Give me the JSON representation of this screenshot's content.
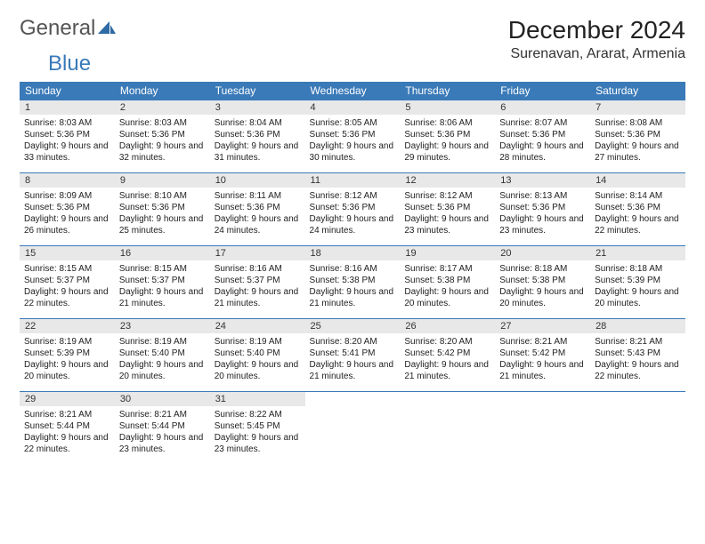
{
  "brand": {
    "part1": "General",
    "part2": "Blue"
  },
  "title": "December 2024",
  "location": "Surenavan, Ararat, Armenia",
  "colors": {
    "header_bg": "#3a7ab8",
    "header_fg": "#ffffff",
    "daynum_bg": "#e8e8e8",
    "border": "#3a7ab8",
    "logo_gray": "#555555",
    "logo_blue": "#3a7ab8"
  },
  "weekdays": [
    "Sunday",
    "Monday",
    "Tuesday",
    "Wednesday",
    "Thursday",
    "Friday",
    "Saturday"
  ],
  "weeks": [
    [
      {
        "n": "1",
        "sr": "8:03 AM",
        "ss": "5:36 PM",
        "dl": "9 hours and 33 minutes."
      },
      {
        "n": "2",
        "sr": "8:03 AM",
        "ss": "5:36 PM",
        "dl": "9 hours and 32 minutes."
      },
      {
        "n": "3",
        "sr": "8:04 AM",
        "ss": "5:36 PM",
        "dl": "9 hours and 31 minutes."
      },
      {
        "n": "4",
        "sr": "8:05 AM",
        "ss": "5:36 PM",
        "dl": "9 hours and 30 minutes."
      },
      {
        "n": "5",
        "sr": "8:06 AM",
        "ss": "5:36 PM",
        "dl": "9 hours and 29 minutes."
      },
      {
        "n": "6",
        "sr": "8:07 AM",
        "ss": "5:36 PM",
        "dl": "9 hours and 28 minutes."
      },
      {
        "n": "7",
        "sr": "8:08 AM",
        "ss": "5:36 PM",
        "dl": "9 hours and 27 minutes."
      }
    ],
    [
      {
        "n": "8",
        "sr": "8:09 AM",
        "ss": "5:36 PM",
        "dl": "9 hours and 26 minutes."
      },
      {
        "n": "9",
        "sr": "8:10 AM",
        "ss": "5:36 PM",
        "dl": "9 hours and 25 minutes."
      },
      {
        "n": "10",
        "sr": "8:11 AM",
        "ss": "5:36 PM",
        "dl": "9 hours and 24 minutes."
      },
      {
        "n": "11",
        "sr": "8:12 AM",
        "ss": "5:36 PM",
        "dl": "9 hours and 24 minutes."
      },
      {
        "n": "12",
        "sr": "8:12 AM",
        "ss": "5:36 PM",
        "dl": "9 hours and 23 minutes."
      },
      {
        "n": "13",
        "sr": "8:13 AM",
        "ss": "5:36 PM",
        "dl": "9 hours and 23 minutes."
      },
      {
        "n": "14",
        "sr": "8:14 AM",
        "ss": "5:36 PM",
        "dl": "9 hours and 22 minutes."
      }
    ],
    [
      {
        "n": "15",
        "sr": "8:15 AM",
        "ss": "5:37 PM",
        "dl": "9 hours and 22 minutes."
      },
      {
        "n": "16",
        "sr": "8:15 AM",
        "ss": "5:37 PM",
        "dl": "9 hours and 21 minutes."
      },
      {
        "n": "17",
        "sr": "8:16 AM",
        "ss": "5:37 PM",
        "dl": "9 hours and 21 minutes."
      },
      {
        "n": "18",
        "sr": "8:16 AM",
        "ss": "5:38 PM",
        "dl": "9 hours and 21 minutes."
      },
      {
        "n": "19",
        "sr": "8:17 AM",
        "ss": "5:38 PM",
        "dl": "9 hours and 20 minutes."
      },
      {
        "n": "20",
        "sr": "8:18 AM",
        "ss": "5:38 PM",
        "dl": "9 hours and 20 minutes."
      },
      {
        "n": "21",
        "sr": "8:18 AM",
        "ss": "5:39 PM",
        "dl": "9 hours and 20 minutes."
      }
    ],
    [
      {
        "n": "22",
        "sr": "8:19 AM",
        "ss": "5:39 PM",
        "dl": "9 hours and 20 minutes."
      },
      {
        "n": "23",
        "sr": "8:19 AM",
        "ss": "5:40 PM",
        "dl": "9 hours and 20 minutes."
      },
      {
        "n": "24",
        "sr": "8:19 AM",
        "ss": "5:40 PM",
        "dl": "9 hours and 20 minutes."
      },
      {
        "n": "25",
        "sr": "8:20 AM",
        "ss": "5:41 PM",
        "dl": "9 hours and 21 minutes."
      },
      {
        "n": "26",
        "sr": "8:20 AM",
        "ss": "5:42 PM",
        "dl": "9 hours and 21 minutes."
      },
      {
        "n": "27",
        "sr": "8:21 AM",
        "ss": "5:42 PM",
        "dl": "9 hours and 21 minutes."
      },
      {
        "n": "28",
        "sr": "8:21 AM",
        "ss": "5:43 PM",
        "dl": "9 hours and 22 minutes."
      }
    ],
    [
      {
        "n": "29",
        "sr": "8:21 AM",
        "ss": "5:44 PM",
        "dl": "9 hours and 22 minutes."
      },
      {
        "n": "30",
        "sr": "8:21 AM",
        "ss": "5:44 PM",
        "dl": "9 hours and 23 minutes."
      },
      {
        "n": "31",
        "sr": "8:22 AM",
        "ss": "5:45 PM",
        "dl": "9 hours and 23 minutes."
      },
      null,
      null,
      null,
      null
    ]
  ]
}
